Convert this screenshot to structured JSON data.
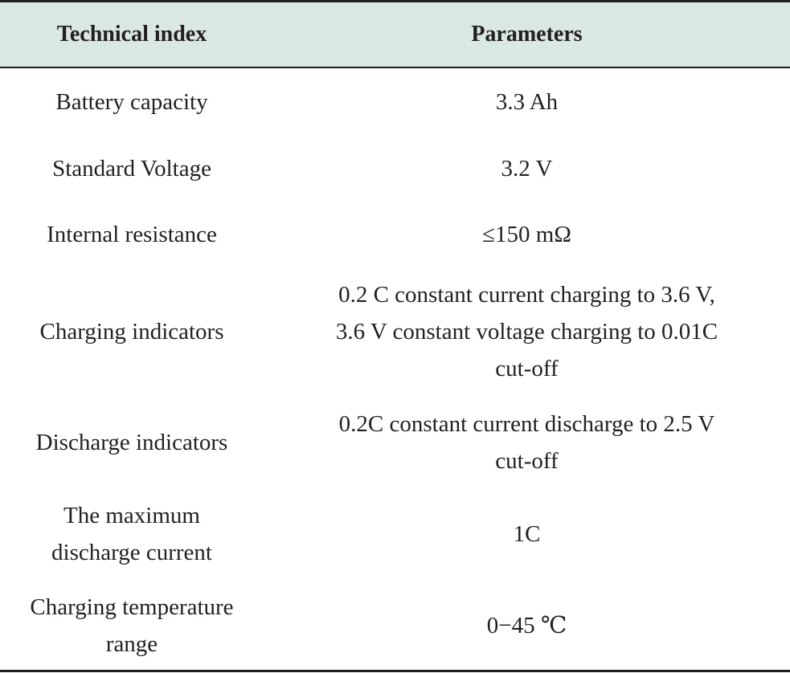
{
  "table": {
    "headers": [
      "Technical index",
      "Parameters"
    ],
    "rows": [
      {
        "index": "Battery capacity",
        "parameter": "3.3 Ah"
      },
      {
        "index": "Standard Voltage",
        "parameter": "3.2 V"
      },
      {
        "index": "Internal resistance",
        "parameter": "≤150 mΩ"
      },
      {
        "index": "Charging indicators",
        "parameter": "0.2 C constant current charging to 3.6 V,\n3.6 V constant voltage charging to 0.01C\ncut-off"
      },
      {
        "index": "Discharge indicators",
        "parameter": "0.2C constant current discharge to 2.5 V\ncut-off"
      },
      {
        "index": "The maximum\ndischarge current",
        "parameter": "1C"
      },
      {
        "index": "Charging temperature\nrange",
        "parameter": "0−45 ℃"
      }
    ]
  },
  "colors": {
    "header_background": "#d9e8e0",
    "rule": "#231f20",
    "text": "#231f20"
  }
}
